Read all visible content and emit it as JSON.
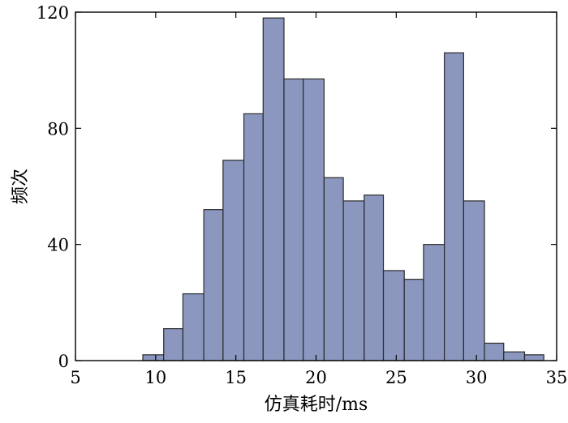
{
  "chart_data": {
    "type": "bar",
    "xlabel": "仿真耗时/ms",
    "ylabel": "频次",
    "xlim": [
      5,
      35
    ],
    "ylim": [
      0,
      120
    ],
    "xticks": [
      5,
      10,
      15,
      20,
      25,
      30,
      35
    ],
    "yticks": [
      0,
      40,
      80,
      120
    ],
    "bin_edges": [
      9.2,
      10.5,
      11.7,
      13.0,
      14.2,
      15.5,
      16.7,
      18.0,
      19.2,
      20.5,
      21.7,
      23.0,
      24.2,
      25.5,
      26.7,
      28.0,
      29.2,
      30.5,
      31.7,
      33.0,
      34.2
    ],
    "values": [
      2,
      11,
      23,
      52,
      69,
      85,
      118,
      97,
      97,
      63,
      55,
      57,
      31,
      28,
      40,
      106,
      55,
      6,
      3,
      2
    ],
    "bar_color": "#8b97bf",
    "bar_edge_color": "#2b2b2b",
    "grid": false,
    "legend": "none"
  }
}
